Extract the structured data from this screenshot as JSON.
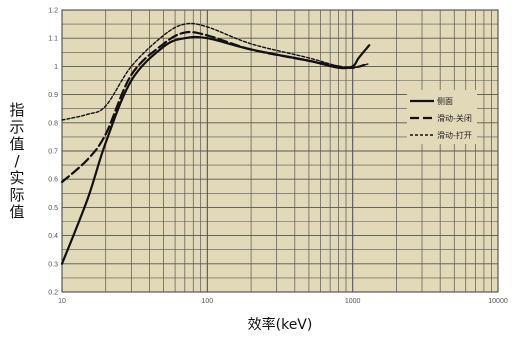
{
  "chart_data": {
    "type": "line",
    "xscale": "log",
    "xlim": [
      10,
      10000
    ],
    "ylim": [
      0.2,
      1.2
    ],
    "xlabel": "效率(keV)",
    "ylabel": "指示值/实际值",
    "grid": true,
    "legend_position": "right",
    "x_tick_labels": [
      "10",
      "100",
      "1000",
      "10000"
    ],
    "y_tick_labels": [
      "0.2",
      "0.3",
      "0.4",
      "0.5",
      "0.6",
      "0.7",
      "0.8",
      "0.9",
      "1",
      "1.1",
      "1.2"
    ],
    "series": [
      {
        "name": "侧面",
        "style": "solid",
        "points": [
          [
            10,
            0.3
          ],
          [
            15,
            0.53
          ],
          [
            20,
            0.73
          ],
          [
            30,
            0.95
          ],
          [
            50,
            1.07
          ],
          [
            70,
            1.1
          ],
          [
            100,
            1.1
          ],
          [
            200,
            1.06
          ],
          [
            500,
            1.02
          ],
          [
            800,
            0.995
          ],
          [
            1000,
            1.0
          ],
          [
            1100,
            1.03
          ],
          [
            1300,
            1.075
          ]
        ]
      },
      {
        "name": "滑动-关闭",
        "style": "dashed",
        "points": [
          [
            10,
            0.59
          ],
          [
            15,
            0.67
          ],
          [
            20,
            0.76
          ],
          [
            30,
            0.97
          ],
          [
            50,
            1.08
          ],
          [
            70,
            1.12
          ],
          [
            100,
            1.11
          ],
          [
            200,
            1.06
          ],
          [
            500,
            1.02
          ],
          [
            800,
            1.0
          ],
          [
            1000,
            0.995
          ],
          [
            1200,
            1.005
          ]
        ]
      },
      {
        "name": "滑动-打开",
        "style": "dotted",
        "points": [
          [
            10,
            0.81
          ],
          [
            15,
            0.83
          ],
          [
            20,
            0.86
          ],
          [
            30,
            1.0
          ],
          [
            50,
            1.11
          ],
          [
            70,
            1.15
          ],
          [
            100,
            1.14
          ],
          [
            200,
            1.08
          ],
          [
            500,
            1.03
          ],
          [
            800,
            1.0
          ],
          [
            1000,
            0.995
          ],
          [
            1300,
            1.01
          ]
        ]
      }
    ]
  }
}
